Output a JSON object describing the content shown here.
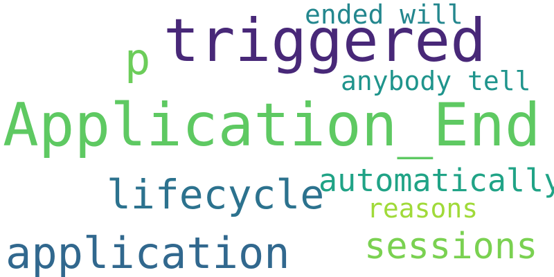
{
  "words": [
    {
      "key": "triggered",
      "text": "triggered",
      "color": "#482878"
    },
    {
      "key": "p",
      "text": "p",
      "color": "#6ccd5a"
    },
    {
      "key": "ended",
      "text": "ended will",
      "color": "#24878e"
    },
    {
      "key": "anybody",
      "text": "anybody tell",
      "color": "#1f948c"
    },
    {
      "key": "application_end",
      "text": "Application_End",
      "color": "#5ec962"
    },
    {
      "key": "lifecycle",
      "text": "lifecycle",
      "color": "#2c728e"
    },
    {
      "key": "automatically",
      "text": "automatically",
      "color": "#20a386"
    },
    {
      "key": "reasons",
      "text": "reasons",
      "color": "#a0da39"
    },
    {
      "key": "sessions",
      "text": "sessions",
      "color": "#7ad151"
    },
    {
      "key": "application",
      "text": "application",
      "color": "#31688e"
    }
  ]
}
